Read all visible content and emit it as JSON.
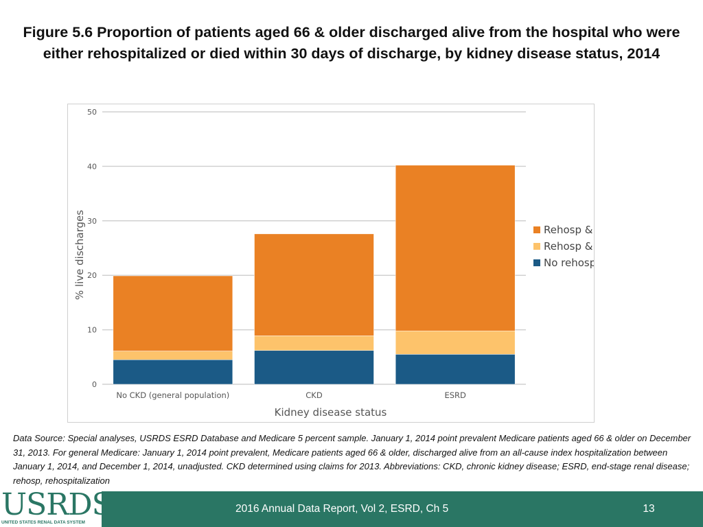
{
  "slide": {
    "title": "Figure 5.6 Proportion of patients aged 66 & older discharged alive from the hospital who were either rehospitalized or died within 30 days of discharge, by kidney disease status, 2014",
    "data_source": "Data Source: Special analyses, USRDS ESRD Database and Medicare 5 percent sample. January 1, 2014 point prevalent Medicare patients aged 66 & older on December 31, 2013. For general Medicare: January 1, 2014 point prevalent, Medicare patients aged 66 & older, discharged alive from an all-cause index hospitalization between January 1, 2014, and December 1, 2014, unadjusted. CKD determined using claims for 2013. Abbreviations: CKD, chronic kidney disease; ESRD, end-stage renal disease; rehosp, rehospitalization"
  },
  "footer": {
    "logo_text": "USRDS",
    "logo_subtitle": "UNITED STATES RENAL DATA SYSTEM",
    "report_label": "2016 Annual Data Report, Vol 2, ESRD, Ch 5",
    "page_number": "13"
  },
  "chart_data": {
    "type": "bar",
    "stacked": true,
    "xlabel": "Kidney disease status",
    "ylabel": "% live discharges",
    "ylim": [
      0,
      50
    ],
    "yticks": [
      0,
      10,
      20,
      30,
      40,
      50
    ],
    "categories": [
      "No CKD (general population)",
      "CKD",
      "ESRD"
    ],
    "series": [
      {
        "name": "No rehosp & died",
        "color": "#1b5a86",
        "values": [
          4.5,
          6.2,
          5.5
        ]
      },
      {
        "name": "Rehosp & died",
        "color": "#fdc36b",
        "values": [
          1.6,
          2.7,
          4.3
        ]
      },
      {
        "name": "Rehosp & alive",
        "color": "#ea8124",
        "values": [
          13.8,
          18.7,
          30.4
        ]
      }
    ],
    "legend_order": [
      "Rehosp & alive",
      "Rehosp & died",
      "No rehosp & died"
    ],
    "legend_position": "right",
    "grid": true
  }
}
